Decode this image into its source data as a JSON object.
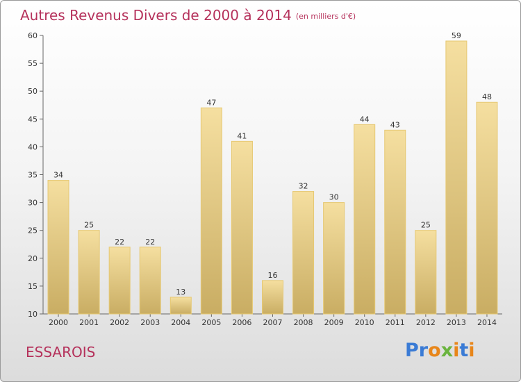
{
  "title": "Autres Revenus Divers de 2000 à 2014",
  "unit": "(en milliers d'€)",
  "commune": "ESSAROIS",
  "logo": {
    "letters": [
      "P",
      "r",
      "o",
      "x",
      "i",
      "t",
      "i"
    ],
    "colors": [
      "#3a7bd5",
      "#3a7bd5",
      "#e8861a",
      "#6ab43e",
      "#e8861a",
      "#3a7bd5",
      "#e8861a"
    ]
  },
  "colors": {
    "title": "#b5315b",
    "bar_light": "#f5dfa0",
    "bar_dark": "#c9ad63",
    "bar_border": "#e6c872"
  },
  "chart_data": {
    "type": "bar",
    "categories": [
      "2000",
      "2001",
      "2002",
      "2003",
      "2004",
      "2005",
      "2006",
      "2007",
      "2008",
      "2009",
      "2010",
      "2011",
      "2012",
      "2013",
      "2014"
    ],
    "values": [
      34,
      25,
      22,
      22,
      13,
      47,
      41,
      16,
      32,
      30,
      44,
      43,
      25,
      59,
      48
    ],
    "ylim": [
      10,
      60
    ],
    "yticks": [
      10,
      15,
      20,
      25,
      30,
      35,
      40,
      45,
      50,
      55,
      60
    ],
    "grid": false,
    "xlabel": "",
    "ylabel": ""
  }
}
